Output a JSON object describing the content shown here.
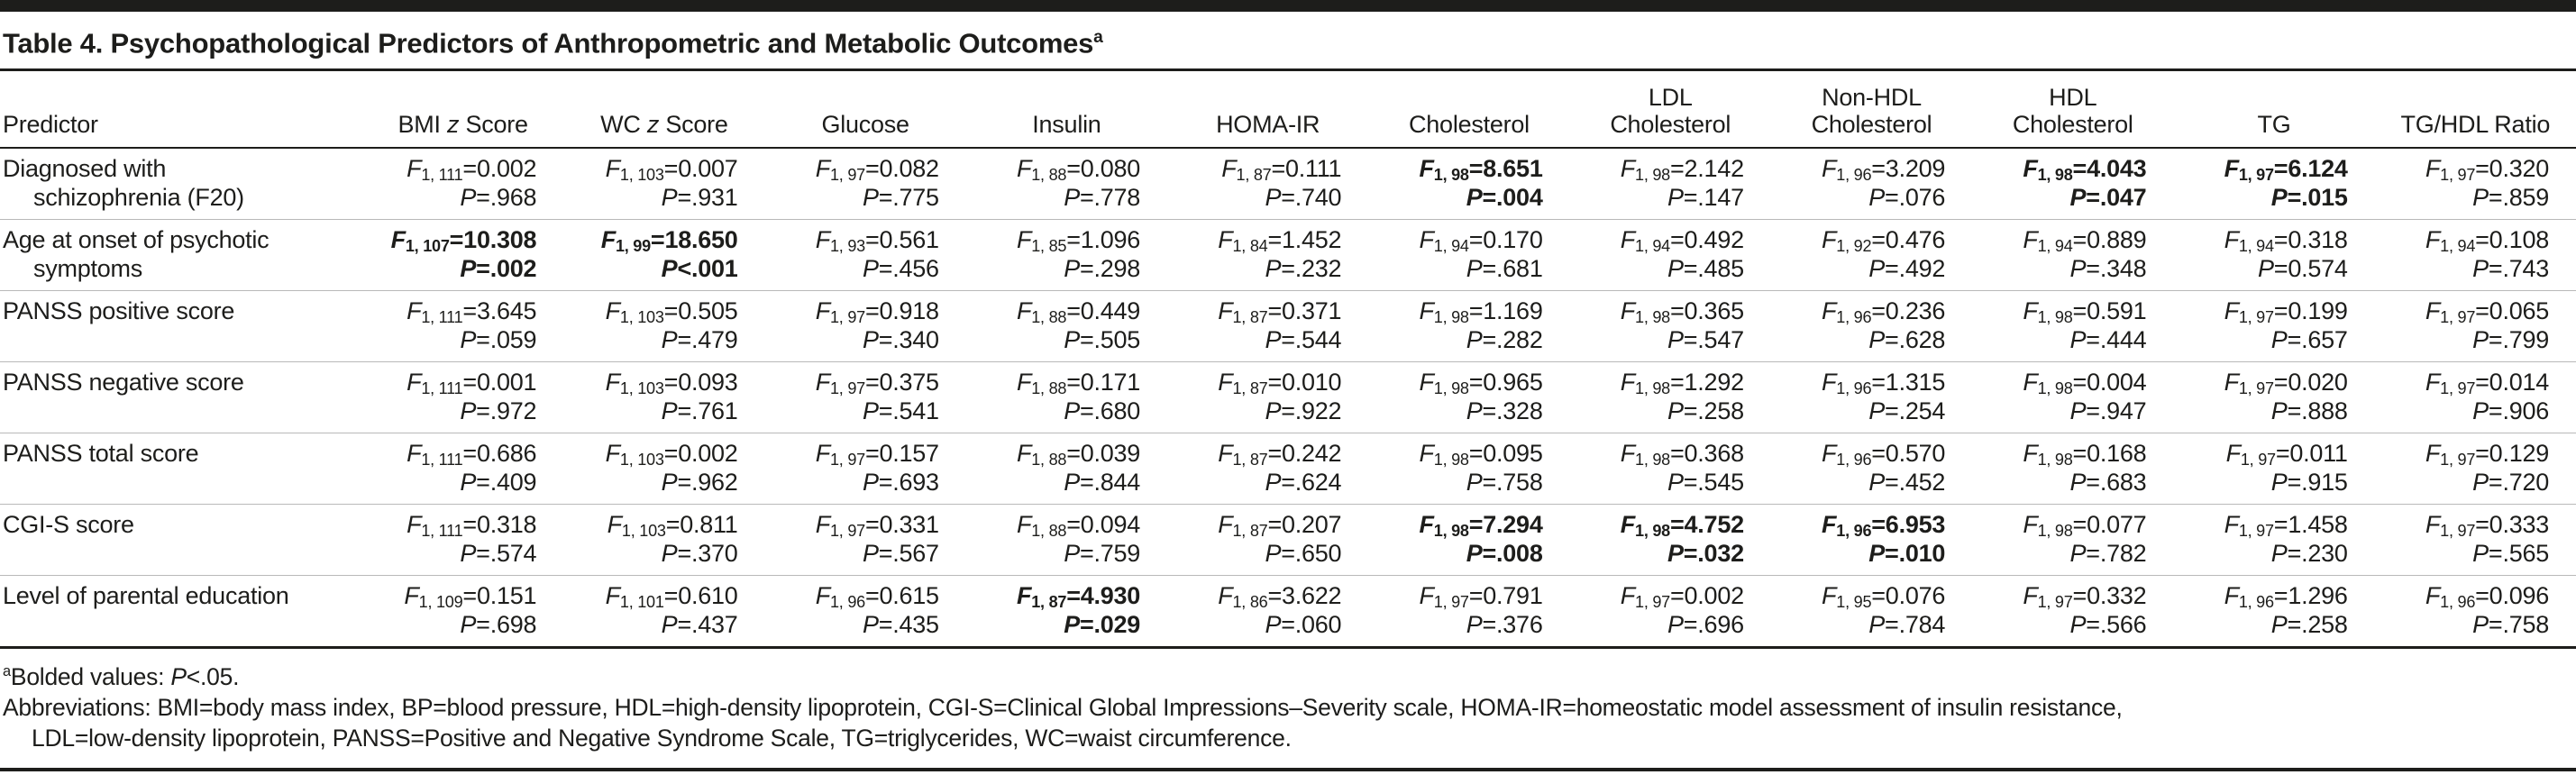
{
  "colors": {
    "background": "#ffffff",
    "text": "#1d1d1b",
    "rule_dark": "#1d1d1b",
    "rule_light": "#b9b9b9"
  },
  "title": {
    "text": "Table 4. Psychopathological Predictors of Anthropometric and Metabolic Outcomes",
    "marker": "a"
  },
  "table": {
    "symbols": {
      "f": "F",
      "p": "P",
      "eq": "="
    },
    "columns": [
      {
        "id": "predictor",
        "lines": [
          [
            "Predictor"
          ]
        ]
      },
      {
        "id": "bmi-z",
        "lines": [
          [
            "BMI ",
            "z",
            " Score"
          ]
        ]
      },
      {
        "id": "wc-z",
        "lines": [
          [
            "WC ",
            "z",
            " Score"
          ]
        ]
      },
      {
        "id": "glucose",
        "lines": [
          [
            "Glucose"
          ]
        ]
      },
      {
        "id": "insulin",
        "lines": [
          [
            "Insulin"
          ]
        ]
      },
      {
        "id": "homa-ir",
        "lines": [
          [
            "HOMA-IR"
          ]
        ]
      },
      {
        "id": "cholesterol",
        "lines": [
          [
            "Cholesterol"
          ]
        ]
      },
      {
        "id": "ldl",
        "lines": [
          [
            "LDL"
          ],
          [
            "Cholesterol"
          ]
        ]
      },
      {
        "id": "non-hdl",
        "lines": [
          [
            "Non-HDL"
          ],
          [
            "Cholesterol"
          ]
        ]
      },
      {
        "id": "hdl",
        "lines": [
          [
            "HDL"
          ],
          [
            "Cholesterol"
          ]
        ]
      },
      {
        "id": "tg",
        "lines": [
          [
            "TG"
          ]
        ]
      },
      {
        "id": "tg-hdl-ratio",
        "lines": [
          [
            "TG/HDL Ratio"
          ]
        ]
      }
    ],
    "rows": [
      {
        "id": "schizophrenia",
        "predictor_lines": [
          "Diagnosed with",
          "schizophrenia (F20)"
        ],
        "cells": [
          {
            "df": "1, 111",
            "f": "0.002",
            "p_rel": "=",
            "p": ".968",
            "bold": false
          },
          {
            "df": "1, 103",
            "f": "0.007",
            "p_rel": "=",
            "p": ".931",
            "bold": false
          },
          {
            "df": "1, 97",
            "f": "0.082",
            "p_rel": "=",
            "p": ".775",
            "bold": false
          },
          {
            "df": "1, 88",
            "f": "0.080",
            "p_rel": "=",
            "p": ".778",
            "bold": false
          },
          {
            "df": "1, 87",
            "f": "0.111",
            "p_rel": "=",
            "p": ".740",
            "bold": false
          },
          {
            "df": "1, 98",
            "f": "8.651",
            "p_rel": "=",
            "p": ".004",
            "bold": true
          },
          {
            "df": "1, 98",
            "f": "2.142",
            "p_rel": "=",
            "p": ".147",
            "bold": false
          },
          {
            "df": "1, 96",
            "f": "3.209",
            "p_rel": "=",
            "p": ".076",
            "bold": false
          },
          {
            "df": "1, 98",
            "f": "4.043",
            "p_rel": "=",
            "p": ".047",
            "bold": true
          },
          {
            "df": "1, 97",
            "f": "6.124",
            "p_rel": "=",
            "p": ".015",
            "bold": true
          },
          {
            "df": "1, 97",
            "f": "0.320",
            "p_rel": "=",
            "p": ".859",
            "bold": false
          }
        ]
      },
      {
        "id": "age-onset",
        "predictor_lines": [
          "Age at onset of psychotic",
          "symptoms"
        ],
        "cells": [
          {
            "df": "1, 107",
            "f": "10.308",
            "p_rel": "=",
            "p": ".002",
            "bold": true
          },
          {
            "df": "1, 99",
            "f": "18.650",
            "p_rel": "<",
            "p": ".001",
            "bold": true
          },
          {
            "df": "1, 93",
            "f": "0.561",
            "p_rel": "=",
            "p": ".456",
            "bold": false
          },
          {
            "df": "1, 85",
            "f": "1.096",
            "p_rel": "=",
            "p": ".298",
            "bold": false
          },
          {
            "df": "1, 84",
            "f": "1.452",
            "p_rel": "=",
            "p": ".232",
            "bold": false
          },
          {
            "df": "1, 94",
            "f": "0.170",
            "p_rel": "=",
            "p": ".681",
            "bold": false
          },
          {
            "df": "1, 94",
            "f": "0.492",
            "p_rel": "=",
            "p": ".485",
            "bold": false
          },
          {
            "df": "1, 92",
            "f": "0.476",
            "p_rel": "=",
            "p": ".492",
            "bold": false
          },
          {
            "df": "1, 94",
            "f": "0.889",
            "p_rel": "=",
            "p": ".348",
            "bold": false
          },
          {
            "df": "1, 94",
            "f": "0.318",
            "p_rel": "=",
            "p": "0.574",
            "bold": false
          },
          {
            "df": "1, 94",
            "f": "0.108",
            "p_rel": "=",
            "p": ".743",
            "bold": false
          }
        ]
      },
      {
        "id": "panss-positive",
        "predictor_lines": [
          "PANSS positive score"
        ],
        "cells": [
          {
            "df": "1, 111",
            "f": "3.645",
            "p_rel": "=",
            "p": ".059",
            "bold": false
          },
          {
            "df": "1, 103",
            "f": "0.505",
            "p_rel": "=",
            "p": ".479",
            "bold": false
          },
          {
            "df": "1, 97",
            "f": "0.918",
            "p_rel": "=",
            "p": ".340",
            "bold": false
          },
          {
            "df": "1, 88",
            "f": "0.449",
            "p_rel": "=",
            "p": ".505",
            "bold": false
          },
          {
            "df": "1, 87",
            "f": "0.371",
            "p_rel": "=",
            "p": ".544",
            "bold": false
          },
          {
            "df": "1, 98",
            "f": "1.169",
            "p_rel": "=",
            "p": ".282",
            "bold": false
          },
          {
            "df": "1, 98",
            "f": "0.365",
            "p_rel": "=",
            "p": ".547",
            "bold": false
          },
          {
            "df": "1, 96",
            "f": "0.236",
            "p_rel": "=",
            "p": ".628",
            "bold": false
          },
          {
            "df": "1, 98",
            "f": "0.591",
            "p_rel": "=",
            "p": ".444",
            "bold": false
          },
          {
            "df": "1, 97",
            "f": "0.199",
            "p_rel": "=",
            "p": ".657",
            "bold": false
          },
          {
            "df": "1, 97",
            "f": "0.065",
            "p_rel": "=",
            "p": ".799",
            "bold": false
          }
        ]
      },
      {
        "id": "panss-negative",
        "predictor_lines": [
          "PANSS negative score"
        ],
        "cells": [
          {
            "df": "1, 111",
            "f": "0.001",
            "p_rel": "=",
            "p": ".972",
            "bold": false
          },
          {
            "df": "1, 103",
            "f": "0.093",
            "p_rel": "=",
            "p": ".761",
            "bold": false
          },
          {
            "df": "1, 97",
            "f": "0.375",
            "p_rel": "=",
            "p": ".541",
            "bold": false
          },
          {
            "df": "1, 88",
            "f": "0.171",
            "p_rel": "=",
            "p": ".680",
            "bold": false
          },
          {
            "df": "1, 87",
            "f": "0.010",
            "p_rel": "=",
            "p": ".922",
            "bold": false
          },
          {
            "df": "1, 98",
            "f": "0.965",
            "p_rel": "=",
            "p": ".328",
            "bold": false
          },
          {
            "df": "1, 98",
            "f": "1.292",
            "p_rel": "=",
            "p": ".258",
            "bold": false
          },
          {
            "df": "1, 96",
            "f": "1.315",
            "p_rel": "=",
            "p": ".254",
            "bold": false
          },
          {
            "df": "1, 98",
            "f": "0.004",
            "p_rel": "=",
            "p": ".947",
            "bold": false
          },
          {
            "df": "1, 97",
            "f": "0.020",
            "p_rel": "=",
            "p": ".888",
            "bold": false
          },
          {
            "df": "1, 97",
            "f": "0.014",
            "p_rel": "=",
            "p": ".906",
            "bold": false
          }
        ]
      },
      {
        "id": "panss-total",
        "predictor_lines": [
          "PANSS total score"
        ],
        "cells": [
          {
            "df": "1, 111",
            "f": "0.686",
            "p_rel": "=",
            "p": ".409",
            "bold": false
          },
          {
            "df": "1, 103",
            "f": "0.002",
            "p_rel": "=",
            "p": ".962",
            "bold": false
          },
          {
            "df": "1, 97",
            "f": "0.157",
            "p_rel": "=",
            "p": ".693",
            "bold": false
          },
          {
            "df": "1, 88",
            "f": "0.039",
            "p_rel": "=",
            "p": ".844",
            "bold": false
          },
          {
            "df": "1, 87",
            "f": "0.242",
            "p_rel": "=",
            "p": ".624",
            "bold": false
          },
          {
            "df": "1, 98",
            "f": "0.095",
            "p_rel": "=",
            "p": ".758",
            "bold": false
          },
          {
            "df": "1, 98",
            "f": "0.368",
            "p_rel": "=",
            "p": ".545",
            "bold": false
          },
          {
            "df": "1, 96",
            "f": "0.570",
            "p_rel": "=",
            "p": ".452",
            "bold": false
          },
          {
            "df": "1, 98",
            "f": "0.168",
            "p_rel": "=",
            "p": ".683",
            "bold": false
          },
          {
            "df": "1, 97",
            "f": "0.011",
            "p_rel": "=",
            "p": ".915",
            "bold": false
          },
          {
            "df": "1, 97",
            "f": "0.129",
            "p_rel": "=",
            "p": ".720",
            "bold": false
          }
        ]
      },
      {
        "id": "cgi-s",
        "predictor_lines": [
          "CGI-S score"
        ],
        "cells": [
          {
            "df": "1, 111",
            "f": "0.318",
            "p_rel": "=",
            "p": ".574",
            "bold": false
          },
          {
            "df": "1, 103",
            "f": "0.811",
            "p_rel": "=",
            "p": ".370",
            "bold": false
          },
          {
            "df": "1, 97",
            "f": "0.331",
            "p_rel": "=",
            "p": ".567",
            "bold": false
          },
          {
            "df": "1, 88",
            "f": "0.094",
            "p_rel": "=",
            "p": ".759",
            "bold": false
          },
          {
            "df": "1, 87",
            "f": "0.207",
            "p_rel": "=",
            "p": ".650",
            "bold": false
          },
          {
            "df": "1, 98",
            "f": "7.294",
            "p_rel": "=",
            "p": ".008",
            "bold": true
          },
          {
            "df": "1, 98",
            "f": "4.752",
            "p_rel": "=",
            "p": ".032",
            "bold": true
          },
          {
            "df": "1, 96",
            "f": "6.953",
            "p_rel": "=",
            "p": ".010",
            "bold": true
          },
          {
            "df": "1, 98",
            "f": "0.077",
            "p_rel": "=",
            "p": ".782",
            "bold": false
          },
          {
            "df": "1, 97",
            "f": "1.458",
            "p_rel": "=",
            "p": ".230",
            "bold": false
          },
          {
            "df": "1, 97",
            "f": "0.333",
            "p_rel": "=",
            "p": ".565",
            "bold": false
          }
        ]
      },
      {
        "id": "parental-education",
        "predictor_lines": [
          "Level of parental education"
        ],
        "cells": [
          {
            "df": "1, 109",
            "f": "0.151",
            "p_rel": "=",
            "p": ".698",
            "bold": false
          },
          {
            "df": "1, 101",
            "f": "0.610",
            "p_rel": "=",
            "p": ".437",
            "bold": false
          },
          {
            "df": "1, 96",
            "f": "0.615",
            "p_rel": "=",
            "p": ".435",
            "bold": false
          },
          {
            "df": "1, 87",
            "f": "4.930",
            "p_rel": "=",
            "p": ".029",
            "bold": true
          },
          {
            "df": "1, 86",
            "f": "3.622",
            "p_rel": "=",
            "p": ".060",
            "bold": false
          },
          {
            "df": "1, 97",
            "f": "0.791",
            "p_rel": "=",
            "p": ".376",
            "bold": false
          },
          {
            "df": "1, 97",
            "f": "0.002",
            "p_rel": "=",
            "p": ".696",
            "bold": false
          },
          {
            "df": "1, 95",
            "f": "0.076",
            "p_rel": "=",
            "p": ".784",
            "bold": false
          },
          {
            "df": "1, 97",
            "f": "0.332",
            "p_rel": "=",
            "p": ".566",
            "bold": false
          },
          {
            "df": "1, 96",
            "f": "1.296",
            "p_rel": "=",
            "p": ".258",
            "bold": false
          },
          {
            "df": "1, 96",
            "f": "0.096",
            "p_rel": "=",
            "p": ".758",
            "bold": false
          }
        ]
      }
    ]
  },
  "footnotes": {
    "marker": "a",
    "bolded_prefix": "Bolded values: ",
    "p_symbol": "P",
    "bolded_suffix": "<.05.",
    "abbreviations_line1": "Abbreviations: BMI=body mass index, BP=blood pressure, HDL=high-density lipoprotein, CGI-S=Clinical Global Impressions–Severity scale, HOMA-IR=homeostatic model assessment of insulin resistance,",
    "abbreviations_line2": "LDL=low-density lipoprotein, PANSS=Positive and Negative Syndrome Scale, TG=triglycerides, WC=waist circumference."
  }
}
